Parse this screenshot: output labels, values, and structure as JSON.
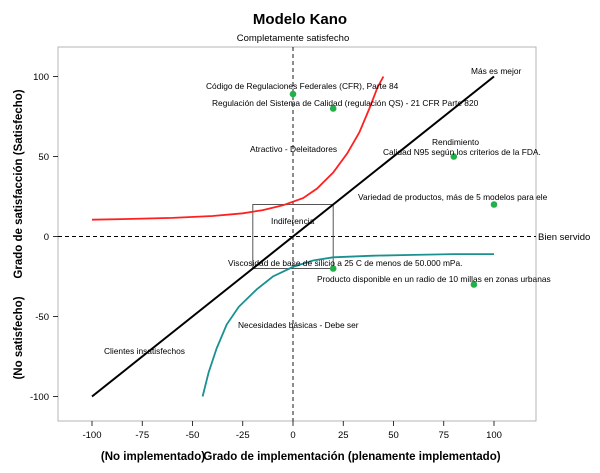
{
  "chart_data": {
    "type": "scatter",
    "title": "Modelo Kano",
    "xlabel": "Grado de implementación (plenamente implementado)",
    "xlabel_left": "(No implementado)",
    "ylabel_top": "Grado de satisfacción (Satisfecho)",
    "ylabel_bottom": "(No satisfecho)",
    "xlim": [
      -110,
      110
    ],
    "ylim": [
      -115,
      115
    ],
    "xticks": [
      -100,
      -75,
      -50,
      -25,
      0,
      25,
      50,
      75,
      100
    ],
    "yticks": [
      100,
      50,
      0,
      -50,
      -100
    ],
    "reference_lines": {
      "top_label": "Completamente satisfecho",
      "right_label": "Bien servido"
    },
    "diagonal": {
      "x": [
        -100,
        100
      ],
      "y": [
        -100,
        100
      ],
      "color": "#000000"
    },
    "attractive_curve": {
      "color": "#ff2020",
      "x": [
        -100,
        -80,
        -60,
        -40,
        -25,
        -15,
        -5,
        5,
        12,
        20,
        27,
        33,
        38,
        42,
        45
      ],
      "y": [
        10.5,
        11,
        11.6,
        12.8,
        14.5,
        16.5,
        19.5,
        24,
        30,
        40,
        52,
        65,
        80,
        93,
        100
      ]
    },
    "must_be_curve": {
      "color": "#1a9090",
      "x": [
        -45,
        -42,
        -38,
        -33,
        -27,
        -18,
        -10,
        0,
        10,
        20,
        40,
        60,
        80,
        100
      ],
      "y": [
        -100,
        -85,
        -70,
        -55,
        -44,
        -33,
        -25,
        -19,
        -15,
        -13,
        -12,
        -11.5,
        -11,
        -11
      ]
    },
    "indifference_box": {
      "x": [
        -20,
        20
      ],
      "y": [
        -20,
        20
      ]
    },
    "points": [
      {
        "x": 0,
        "y": 89,
        "label": "Código de Regulaciones Federales (CFR), Parte 84"
      },
      {
        "x": 20,
        "y": 80,
        "label": "Regulación del Sistema de Calidad (regulación QS) - 21 CFR Parte 820"
      },
      {
        "x": 80,
        "y": 50,
        "label": "Calidad N95 según los criterios de la FDA."
      },
      {
        "x": 100,
        "y": 20,
        "label": "Variedad de productos, más de 5 modelos para ele"
      },
      {
        "x": 20,
        "y": -20,
        "label": "Viscosidad de base de silicio a 25 C de menos de 50.000 mPa."
      },
      {
        "x": 90,
        "y": -30,
        "label": "Producto disponible en un radio de 10 millas en zonas urbanas"
      }
    ],
    "point_color": "#22b04a",
    "region_labels": [
      {
        "text": "Más es mejor"
      },
      {
        "text": "Rendimiento"
      },
      {
        "text": "Atractivo - Deleitadores"
      },
      {
        "text": "Indiferencia"
      },
      {
        "text": "Necesidades básicas - Debe ser"
      },
      {
        "text": "Clientes insatisfechos"
      }
    ]
  }
}
